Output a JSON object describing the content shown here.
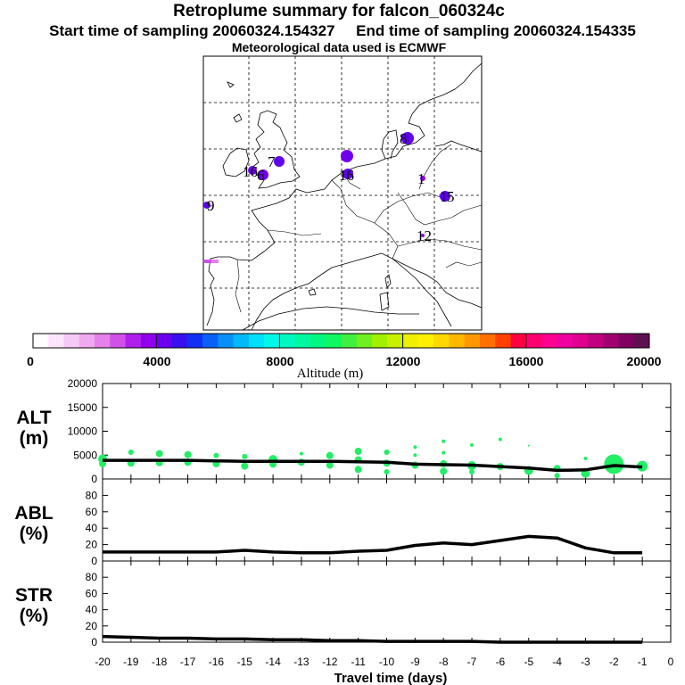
{
  "header": {
    "title": "Retroplume summary for falcon_060324c",
    "sampling": "Start time of sampling 20060324.154327     End time of sampling 20060324.154335",
    "met": "Meteorological data used is ECMWF"
  },
  "map_labels": [
    "16",
    "7",
    "6",
    "8",
    "16",
    "1",
    "1",
    "5",
    "9",
    "12"
  ],
  "colorbar": {
    "label": "Altitude (m)",
    "ticks": [
      "0",
      "4000",
      "8000",
      "12000",
      "16000",
      "20000"
    ],
    "colors": [
      "#ffffff",
      "#fce4fc",
      "#f6c8f6",
      "#f0a8f0",
      "#e680ea",
      "#d050e8",
      "#b020ea",
      "#9000ee",
      "#6a00ee",
      "#3810f0",
      "#1030f4",
      "#0860f8",
      "#0890fa",
      "#00b8fa",
      "#00e0fa",
      "#00f8ea",
      "#00f8c0",
      "#00f8a0",
      "#00f880",
      "#10f860",
      "#40f040",
      "#70f020",
      "#a0f000",
      "#c8f000",
      "#eef000",
      "#fff000",
      "#ffd800",
      "#ffb800",
      "#ff9800",
      "#ff7000",
      "#ff4000",
      "#ff0040",
      "#ff0070",
      "#ff0090",
      "#f000a0",
      "#e00090",
      "#c00080",
      "#a00070",
      "#800060",
      "#601050"
    ]
  },
  "chart_data": [
    {
      "type": "line",
      "panel": "ALT",
      "ylabel": "ALT\n(m)",
      "ylabel_lines": [
        "ALT",
        "(m)"
      ],
      "ylim": [
        0,
        20000
      ],
      "yticks": [
        0,
        5000,
        10000,
        15000,
        20000
      ],
      "ytick_labels": [
        "0",
        "5000",
        "10000",
        "15000",
        "20000"
      ],
      "x": [
        -20,
        -19,
        -18,
        -17,
        -16,
        -15,
        -14,
        -13,
        -12,
        -11,
        -10,
        -9,
        -8,
        -7,
        -6,
        -5,
        -4,
        -3,
        -2,
        -1
      ],
      "values": [
        3900,
        3900,
        3900,
        3900,
        3800,
        3700,
        3700,
        3700,
        3700,
        3600,
        3500,
        3100,
        3000,
        2900,
        2600,
        2300,
        1800,
        1900,
        2800,
        2500
      ],
      "scatter_points": [
        {
          "x": -20,
          "y": 4200,
          "r": 5
        },
        {
          "x": -20,
          "y": 3200,
          "r": 4
        },
        {
          "x": -19,
          "y": 5600,
          "r": 3
        },
        {
          "x": -19,
          "y": 3300,
          "r": 4
        },
        {
          "x": -18,
          "y": 5300,
          "r": 4
        },
        {
          "x": -18,
          "y": 3400,
          "r": 4
        },
        {
          "x": -17,
          "y": 5100,
          "r": 4
        },
        {
          "x": -17,
          "y": 3500,
          "r": 4
        },
        {
          "x": -16,
          "y": 4900,
          "r": 3
        },
        {
          "x": -16,
          "y": 3200,
          "r": 4
        },
        {
          "x": -15,
          "y": 4700,
          "r": 3
        },
        {
          "x": -15,
          "y": 2700,
          "r": 4
        },
        {
          "x": -14,
          "y": 4100,
          "r": 5
        },
        {
          "x": -14,
          "y": 3100,
          "r": 4
        },
        {
          "x": -13,
          "y": 5300,
          "r": 2
        },
        {
          "x": -13,
          "y": 3500,
          "r": 4
        },
        {
          "x": -12,
          "y": 4900,
          "r": 4
        },
        {
          "x": -12,
          "y": 2900,
          "r": 4
        },
        {
          "x": -11,
          "y": 5800,
          "r": 4
        },
        {
          "x": -11,
          "y": 4000,
          "r": 4
        },
        {
          "x": -11,
          "y": 2000,
          "r": 4
        },
        {
          "x": -10,
          "y": 5600,
          "r": 3
        },
        {
          "x": -10,
          "y": 3300,
          "r": 4
        },
        {
          "x": -10,
          "y": 1500,
          "r": 3
        },
        {
          "x": -9,
          "y": 6700,
          "r": 2
        },
        {
          "x": -9,
          "y": 5000,
          "r": 2
        },
        {
          "x": -9,
          "y": 2900,
          "r": 4
        },
        {
          "x": -8,
          "y": 7900,
          "r": 2
        },
        {
          "x": -8,
          "y": 5500,
          "r": 2
        },
        {
          "x": -8,
          "y": 3200,
          "r": 4
        },
        {
          "x": -8,
          "y": 1600,
          "r": 4
        },
        {
          "x": -7,
          "y": 7100,
          "r": 2
        },
        {
          "x": -7,
          "y": 2800,
          "r": 5
        },
        {
          "x": -7,
          "y": 1500,
          "r": 3
        },
        {
          "x": -6,
          "y": 8300,
          "r": 2
        },
        {
          "x": -6,
          "y": 2600,
          "r": 4
        },
        {
          "x": -5,
          "y": 7000,
          "r": 1
        },
        {
          "x": -5,
          "y": 1800,
          "r": 5
        },
        {
          "x": -4,
          "y": 2200,
          "r": 4
        },
        {
          "x": -4,
          "y": 700,
          "r": 3
        },
        {
          "x": -3,
          "y": 4300,
          "r": 2
        },
        {
          "x": -3,
          "y": 1200,
          "r": 5
        },
        {
          "x": -2,
          "y": 3100,
          "r": 11
        },
        {
          "x": -1,
          "y": 2700,
          "r": 6
        }
      ]
    },
    {
      "type": "line",
      "panel": "ABL",
      "ylabel": "ABL\n(%)",
      "ylabel_lines": [
        "ABL",
        "(%)"
      ],
      "ylim": [
        0,
        100
      ],
      "yticks": [
        0,
        20,
        40,
        60,
        80
      ],
      "ytick_labels": [
        "0",
        "20",
        "40",
        "60",
        "80"
      ],
      "x": [
        -20,
        -19,
        -18,
        -17,
        -16,
        -15,
        -14,
        -13,
        -12,
        -11,
        -10,
        -9,
        -8,
        -7,
        -6,
        -5,
        -4,
        -3,
        -2,
        -1
      ],
      "values": [
        11,
        11,
        11,
        11,
        11,
        13,
        11,
        10,
        10,
        12,
        13,
        19,
        22,
        20,
        25,
        30,
        28,
        16,
        10,
        10
      ]
    },
    {
      "type": "line",
      "panel": "STR",
      "ylabel": "STR\n(%)",
      "ylabel_lines": [
        "STR",
        "(%)"
      ],
      "ylim": [
        0,
        100
      ],
      "yticks": [
        0,
        20,
        40,
        60,
        80
      ],
      "ytick_labels": [
        "0",
        "20",
        "40",
        "60",
        "80"
      ],
      "x": [
        -20,
        -19,
        -18,
        -17,
        -16,
        -15,
        -14,
        -13,
        -12,
        -11,
        -10,
        -9,
        -8,
        -7,
        -6,
        -5,
        -4,
        -3,
        -2,
        -1
      ],
      "values": [
        7,
        6,
        5,
        5,
        4,
        4,
        3,
        3,
        2,
        2,
        1,
        1,
        1,
        1,
        0,
        0,
        0,
        0,
        0,
        0
      ]
    }
  ],
  "xaxis": {
    "xlabel": "Travel time (days)",
    "xlim": [
      -20,
      0
    ],
    "ticks": [
      -20,
      -19,
      -18,
      -17,
      -16,
      -15,
      -14,
      -13,
      -12,
      -11,
      -10,
      -9,
      -8,
      -7,
      -6,
      -5,
      -4,
      -3,
      -2,
      -1,
      0
    ],
    "tick_labels": [
      "-20",
      "-19",
      "-18",
      "-17",
      "-16",
      "-15",
      "-14",
      "-13",
      "-12",
      "-11",
      "-10",
      "-9",
      "-8",
      "-7",
      "-6",
      "-5",
      "-4",
      "-3",
      "-2",
      "-1",
      "0"
    ]
  }
}
